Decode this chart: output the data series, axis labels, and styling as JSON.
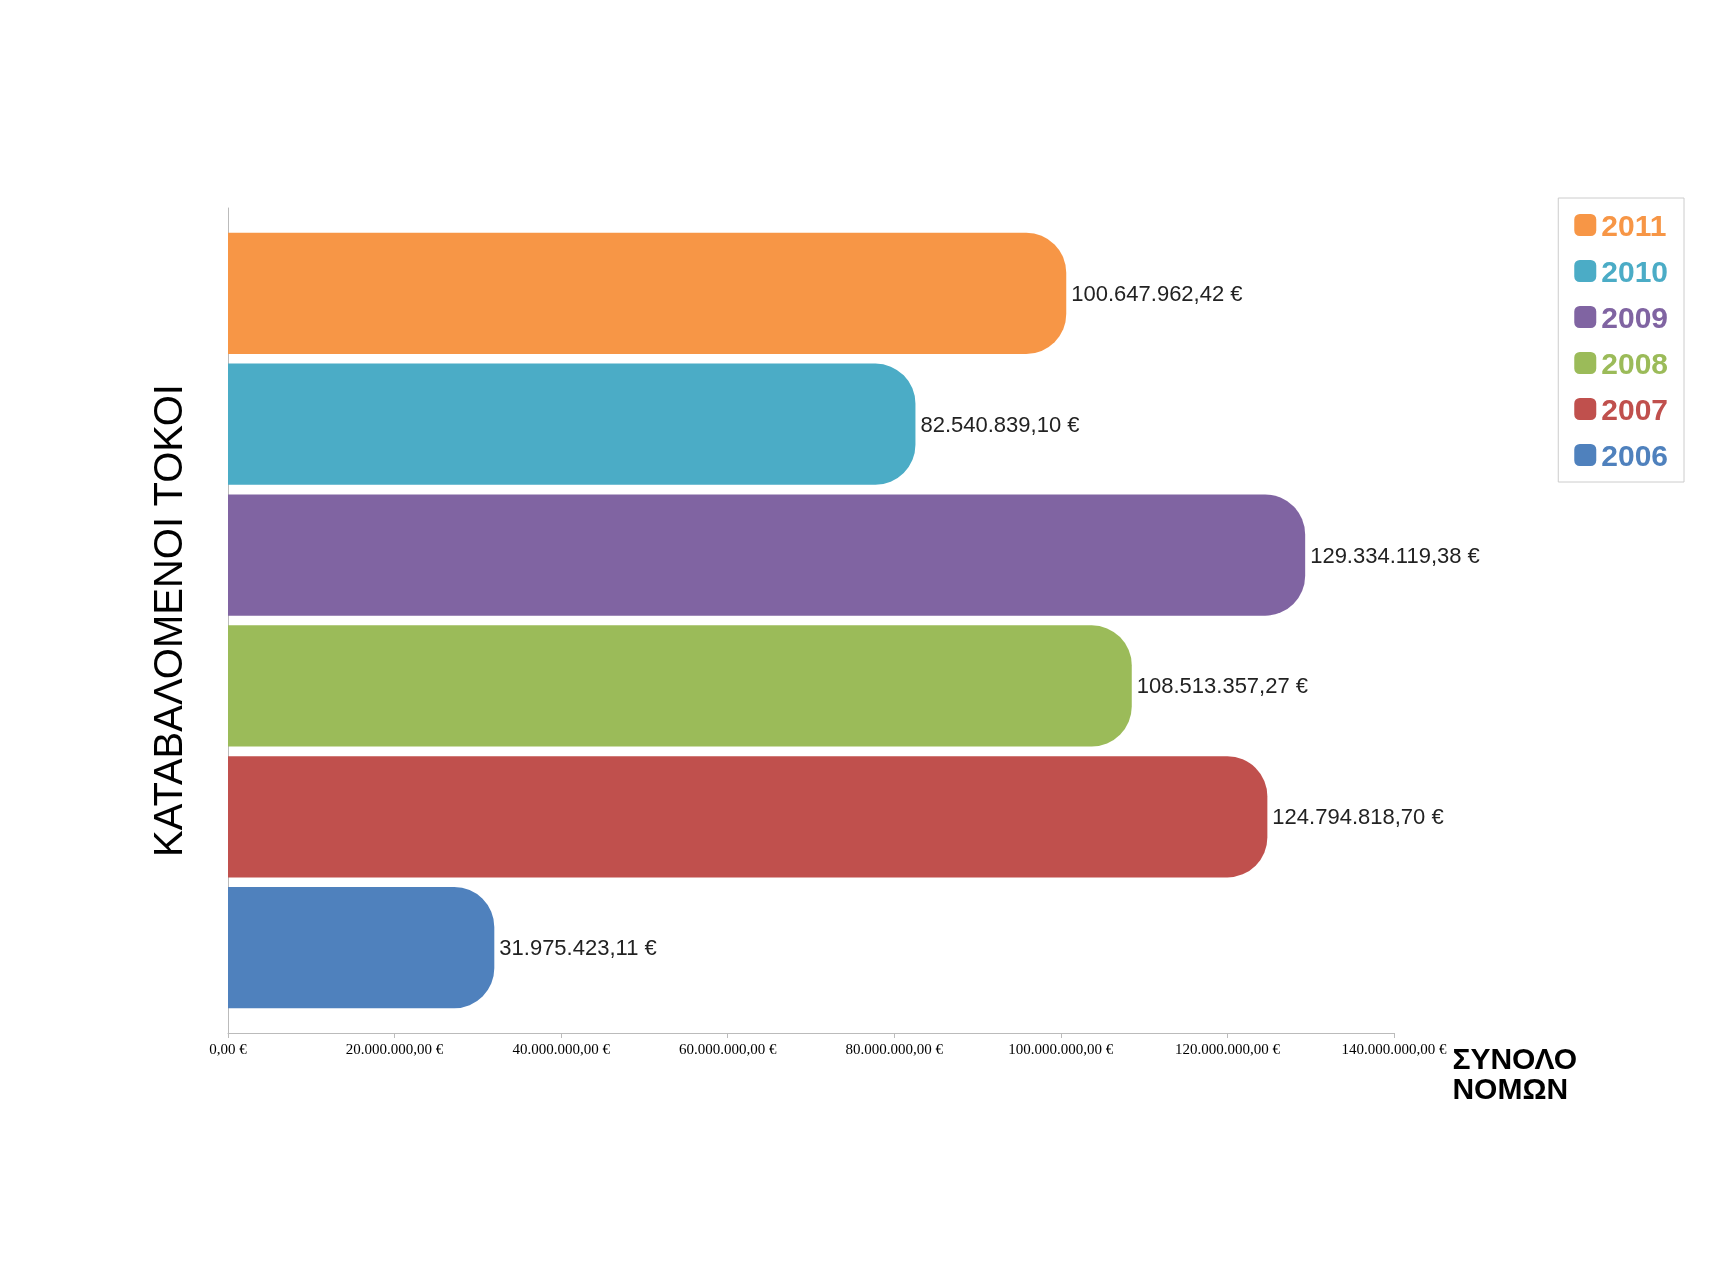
{
  "chart_data": {
    "type": "bar",
    "orientation": "horizontal",
    "xlabel": "ΣΥΝΟΛΟ\nΝΟΜΩΝ",
    "ylabel": "ΚΑΤΑΒΑΛΟΜΕΝΟΙ ΤΟΚΟΙ",
    "categories": [
      null
    ],
    "series": [
      {
        "name": "2011",
        "color": "#f79646",
        "values": [
          100647962.42
        ],
        "value_labels": [
          "100.647.962,42 €"
        ]
      },
      {
        "name": "2010",
        "color": "#4bacc6",
        "values": [
          82540839.1
        ],
        "value_labels": [
          "82.540.839,10 €"
        ]
      },
      {
        "name": "2009",
        "color": "#8064a2",
        "values": [
          129334119.38
        ],
        "value_labels": [
          "129.334.119,38 €"
        ]
      },
      {
        "name": "2008",
        "color": "#9bbb59",
        "values": [
          108513357.27
        ],
        "value_labels": [
          "108.513.357,27 €"
        ]
      },
      {
        "name": "2007",
        "color": "#c0504d",
        "values": [
          124794818.7
        ],
        "value_labels": [
          "124.794.818,70 €"
        ]
      },
      {
        "name": "2006",
        "color": "#4f81bd",
        "values": [
          31975423.11
        ],
        "value_labels": [
          "31.975.423,11 €"
        ]
      }
    ],
    "xlim": [
      0,
      140000000
    ],
    "xticks": [
      {
        "value": 0,
        "label": "0,00 €"
      },
      {
        "value": 20000000,
        "label": "20.000.000,00 €"
      },
      {
        "value": 40000000,
        "label": "40.000.000,00 €"
      },
      {
        "value": 60000000,
        "label": "60.000.000,00 €"
      },
      {
        "value": 80000000,
        "label": "80.000.000,00 €"
      },
      {
        "value": 100000000,
        "label": "100.000.000,00 €"
      },
      {
        "value": 120000000,
        "label": "120.000.000,00 €"
      },
      {
        "value": 140000000,
        "label": "140.000.000,00 €"
      }
    ],
    "legend": "top right",
    "grid": false
  }
}
